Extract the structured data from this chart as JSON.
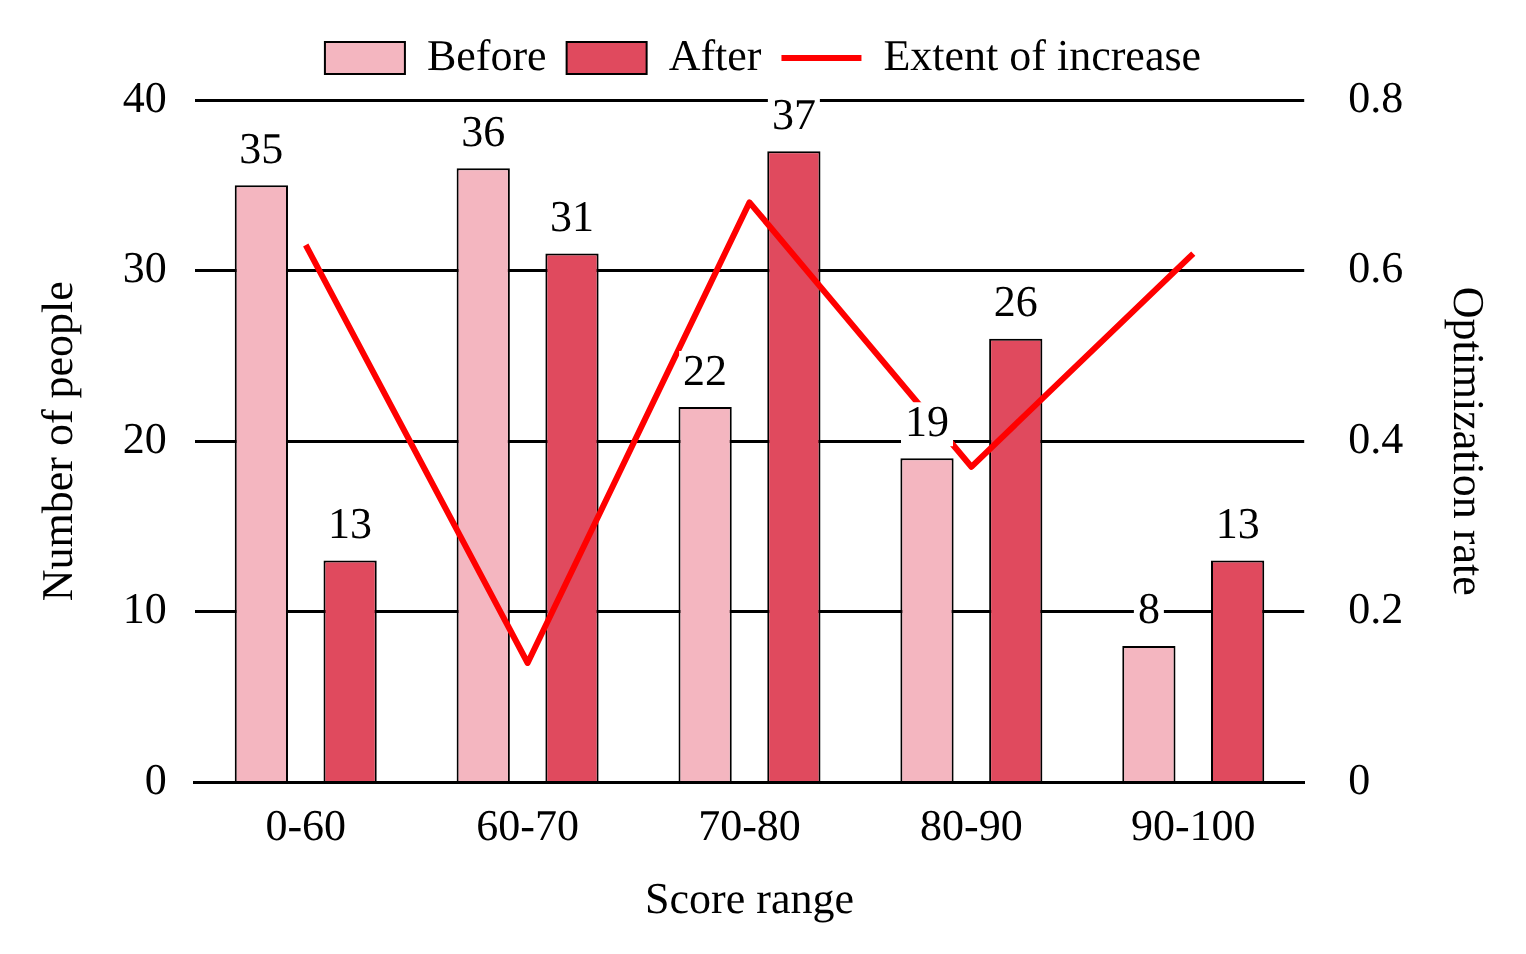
{
  "chart_data": {
    "type": "bar",
    "xlabel": "Score range",
    "ylabel": "Number of people",
    "y2label": "Optimization rate",
    "categories": [
      "0-60",
      "60-70",
      "70-80",
      "80-90",
      "90-100"
    ],
    "series": [
      {
        "name": "Before",
        "color": "#f4b6c0",
        "values": [
          35,
          36,
          22,
          19,
          8
        ],
        "value_labels": [
          "35",
          "36",
          "22",
          "19",
          "8"
        ]
      },
      {
        "name": "After",
        "color": "#e04a5e",
        "values": [
          13,
          31,
          37,
          26,
          13
        ],
        "value_labels": [
          "13",
          "31",
          "37",
          "26",
          "13"
        ]
      },
      {
        "name": "Extent of increase",
        "type": "line",
        "axis": "y2",
        "color": "#ff0000",
        "values": [
          0.63,
          0.14,
          0.68,
          0.37,
          0.62
        ]
      }
    ],
    "ylim": [
      0,
      40
    ],
    "yticks": [
      0,
      10,
      20,
      30,
      40
    ],
    "y2lim": [
      0,
      0.8
    ],
    "y2ticks": [
      0,
      0.2,
      0.4,
      0.6,
      0.8
    ],
    "grid": "y",
    "legend": "top",
    "marker": "none",
    "line_style": "solid"
  }
}
